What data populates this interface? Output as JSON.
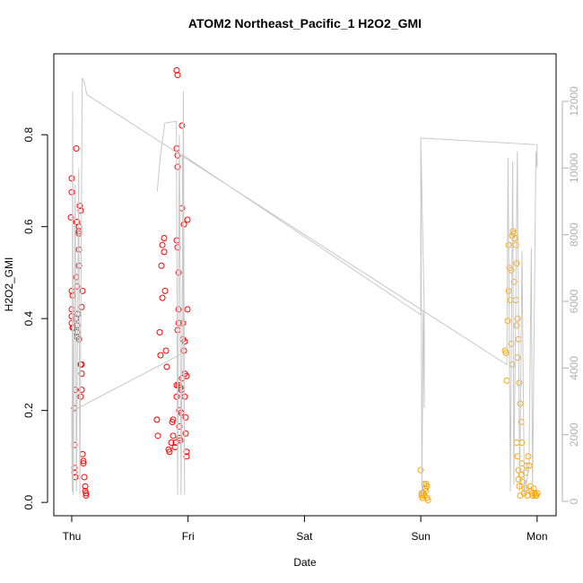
{
  "chart_data": {
    "type": "scatter",
    "title": "ATOM2 Northeast_Pacific_1 H2O2_GMI",
    "x_label": "Date",
    "y_label": "H2O2_GMI",
    "xlim": [
      -0.154,
      4.163
    ],
    "ylim": [
      -0.029,
      0.976
    ],
    "y2lim": [
      -430,
      13425
    ],
    "xticks": [
      {
        "value": 0,
        "label": "Thu"
      },
      {
        "value": 1,
        "label": "Fri"
      },
      {
        "value": 2,
        "label": "Sat"
      },
      {
        "value": 3,
        "label": "Sun"
      },
      {
        "value": 4,
        "label": "Mon"
      }
    ],
    "yticks": [
      {
        "value": 0,
        "label": "0.0"
      },
      0.2,
      0.4,
      0.6,
      0.8
    ],
    "y2ticks": [
      0,
      2000,
      4000,
      6000,
      8000,
      10000,
      12000
    ],
    "series": [
      {
        "color": "#ff0000",
        "x": [
          0,
          0,
          -0.008,
          0,
          0.008,
          0,
          0,
          0,
          0.008,
          0.015,
          0.023,
          0.023,
          0.023,
          0.023,
          0.031,
          0.039,
          0.039,
          0.046,
          0.039,
          0.046,
          0.062,
          0.062,
          0.062,
          0.062,
          0.069,
          0.077,
          0.039,
          0.046,
          0.046,
          0.046,
          0.062,
          0.031,
          0.077,
          0.085,
          0.085,
          0.077,
          0.085,
          0.085,
          0.093,
          0.093,
          0.1,
          0.1,
          0.108,
          0.116,
          0.116,
          0.123,
          0.123,
          0.062,
          0.054,
          0.732,
          0.74,
          0.756,
          0.763,
          0.771,
          0.779,
          0.779,
          0.794,
          0.794,
          0.802,
          0.81,
          0.817,
          0.833,
          0.84,
          0.856,
          0.864,
          0.871,
          0.871,
          0.887,
          0.894,
          0.902,
          0.91,
          0.902,
          0.91,
          0.91,
          0.902,
          0.91,
          0.918,
          0.918,
          0.91,
          0.902,
          0.902,
          0.918,
          0.925,
          0.925,
          0.933,
          0.941,
          0.933,
          0.941,
          0.948,
          0.948,
          0.948,
          0.956,
          0.956,
          0.964,
          0.964,
          0.971,
          0.971,
          0.971,
          0.979,
          0.987,
          0.987,
          0.987,
          0.995,
          0.995,
          0.979,
          0.925,
          0.918
        ],
        "values": [
          0.705,
          0.675,
          0.62,
          0.46,
          0.45,
          0.42,
          0.405,
          0.39,
          0.38,
          0.38,
          0.205,
          0.125,
          0.075,
          0.065,
          0.055,
          0.77,
          0.49,
          0.47,
          0.61,
          0.61,
          0.6,
          0.59,
          0.585,
          0.55,
          0.645,
          0.635,
          0.4,
          0.385,
          0.37,
          0.36,
          0.355,
          0.245,
          0.3,
          0.3,
          0.245,
          0.23,
          0.28,
          0.425,
          0.46,
          0.105,
          0.09,
          0.085,
          0.055,
          0.035,
          0.025,
          0.015,
          0.02,
          0.515,
          0.41,
          0.18,
          0.145,
          0.37,
          0.32,
          0.515,
          0.445,
          0.56,
          0.575,
          0.545,
          0.46,
          0.33,
          0.295,
          0.115,
          0.11,
          0.13,
          0.175,
          0.18,
          0.145,
          0.12,
          0.13,
          0.94,
          0.93,
          0.77,
          0.755,
          0.73,
          0.57,
          0.555,
          0.5,
          0.39,
          0.375,
          0.23,
          0.255,
          0.255,
          0.14,
          0.165,
          0.135,
          0.195,
          0.25,
          0.245,
          0.82,
          0.64,
          0.27,
          0.39,
          0.355,
          0.605,
          0.33,
          0.28,
          0.35,
          0.23,
          0.15,
          0.11,
          0.1,
          0.275,
          0.615,
          0.42,
          0.185,
          0.2,
          0.42
        ]
      },
      {
        "color": "#ffa500",
        "x": [
          2.999,
          3.007,
          3.015,
          3.022,
          3.03,
          3.038,
          3.045,
          3.053,
          3.053,
          3.061,
          3.007,
          3.03,
          3.045,
          3.724,
          3.732,
          3.739,
          3.747,
          3.755,
          3.755,
          3.762,
          3.77,
          3.778,
          3.786,
          3.793,
          3.801,
          3.809,
          3.817,
          3.824,
          3.832,
          3.84,
          3.847,
          3.855,
          3.863,
          3.824,
          3.832,
          3.84,
          3.84,
          3.847,
          3.855,
          3.863,
          3.87,
          3.878,
          3.886,
          3.894,
          3.901,
          3.909,
          3.917,
          3.924,
          3.932,
          3.94,
          3.948,
          3.955,
          3.963,
          3.971,
          3.978,
          3.986,
          3.994,
          4.002,
          3.817,
          3.824,
          3.801,
          3.832,
          3.778,
          3.786,
          3.87
        ],
        "values": [
          0.07,
          0.015,
          0.01,
          0.02,
          0.015,
          0.03,
          0.04,
          0.035,
          0.01,
          0.005,
          0.02,
          0.04,
          0.025,
          0.33,
          0.325,
          0.265,
          0.395,
          0.46,
          0.56,
          0.51,
          0.44,
          0.505,
          0.58,
          0.59,
          0.585,
          0.575,
          0.44,
          0.385,
          0.315,
          0.355,
          0.26,
          0.215,
          0.175,
          0.13,
          0.1,
          0.07,
          0.05,
          0.035,
          0.015,
          0.06,
          0.085,
          0.045,
          0.02,
          0.03,
          0.065,
          0.08,
          0.015,
          0.1,
          0.08,
          0.035,
          0.025,
          0.02,
          0.015,
          0.03,
          0.02,
          0.015,
          0.015,
          0.02,
          0.56,
          0.52,
          0.48,
          0.4,
          0.345,
          0.3,
          0.13
        ]
      },
      {
        "type": "line",
        "axis": "y2",
        "color": "#c8c8c8",
        "x": [
          0.735,
          0.76,
          0.8,
          0.9,
          0.91,
          0.925,
          0.94,
          0.96,
          0.97,
          0.95,
          3.0,
          3.0,
          3.01,
          3.02,
          3.03,
          3.03,
          3.0,
          4.0,
          4.0,
          3.99,
          3.96,
          3.95,
          3.93,
          3.89,
          3.87,
          3.85,
          3.83,
          3.8,
          3.79,
          3.77,
          3.75,
          3.74,
          0.13,
          0.105,
          0.09,
          0.07,
          0.06,
          0.04,
          0.03,
          0.012,
          0.008,
          0.003,
          0,
          0.93
        ],
        "values": [
          9300,
          10300,
          11350,
          11400,
          200,
          11000,
          200,
          12300,
          200,
          10400,
          5600,
          10900,
          200,
          5700,
          2800,
          5700,
          10900,
          10700,
          10000,
          10500,
          200,
          7600,
          1000,
          200,
          7500,
          300,
          10500,
          500,
          10200,
          300,
          10300,
          4100,
          12200,
          12600,
          12700,
          200,
          10000,
          300,
          9500,
          200,
          12300,
          300,
          2700,
          4400
        ]
      }
    ]
  }
}
